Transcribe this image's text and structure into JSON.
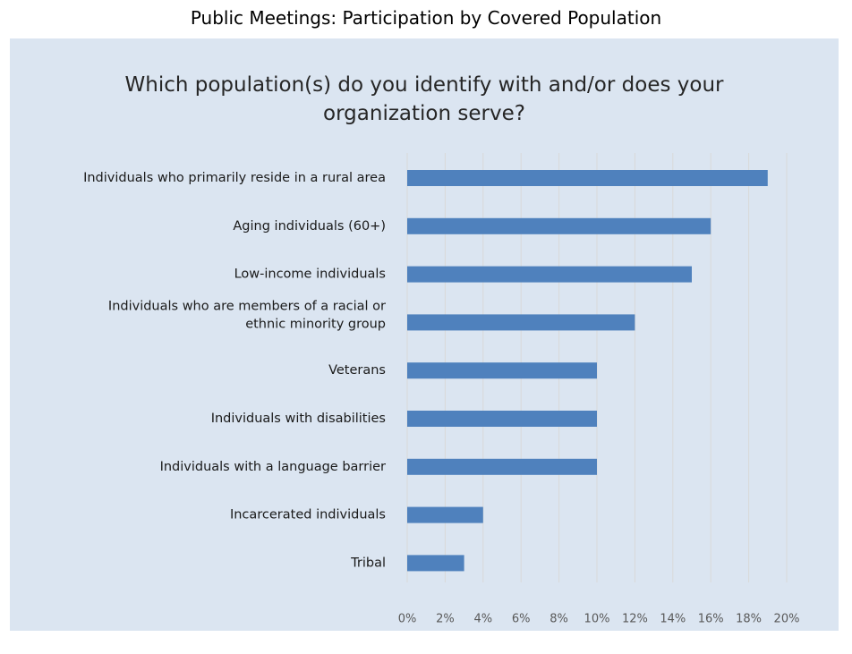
{
  "caption": "Public Meetings: Participation by Covered Population",
  "chart_data": {
    "type": "bar",
    "orientation": "horizontal",
    "title_lines": [
      "Which population(s) do you identify with and/or does your",
      "organization serve?"
    ],
    "categories": [
      [
        "Individuals who primarily reside in a rural area"
      ],
      [
        "Aging individuals (60+)"
      ],
      [
        "Low-income individuals"
      ],
      [
        "Individuals who are members of a racial or",
        "ethnic minority group"
      ],
      [
        "Veterans"
      ],
      [
        "Individuals with disabilities"
      ],
      [
        "Individuals with a language barrier"
      ],
      [
        "Incarcerated individuals"
      ],
      [
        "Tribal"
      ]
    ],
    "values": [
      19,
      16,
      15,
      12,
      10,
      10,
      10,
      4,
      3
    ],
    "xlim": [
      0,
      20
    ],
    "xticks": [
      "0%",
      "2%",
      "4%",
      "6%",
      "8%",
      "10%",
      "12%",
      "14%",
      "16%",
      "18%",
      "20%"
    ],
    "grid": true,
    "bar_color": "#4f81bd",
    "grid_color": "#d9d9d9",
    "background_color": "#dbe5f1"
  }
}
